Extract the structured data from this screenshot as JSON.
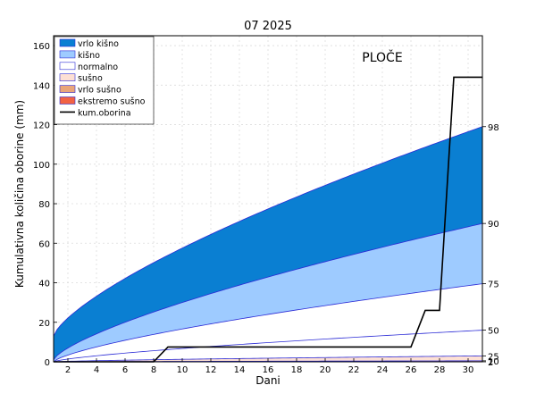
{
  "chart_data": {
    "type": "area",
    "title": "07 2025",
    "station": "PLOČE",
    "xlabel": "Dani",
    "ylabel": "Kumulativna količina oborine (mm)",
    "xlim": [
      1,
      31
    ],
    "ylim": [
      0,
      165
    ],
    "x_ticks": [
      2,
      4,
      6,
      8,
      10,
      12,
      14,
      16,
      18,
      20,
      22,
      24,
      26,
      28,
      30
    ],
    "y_ticks": [
      0,
      20,
      40,
      60,
      80,
      100,
      120,
      140,
      160
    ],
    "grid": true,
    "legend_position": "top-left",
    "bands": [
      {
        "name": "vrlo kišno",
        "color": "#0a7fd2",
        "lower_percentile": 90,
        "upper_percentile": 98
      },
      {
        "name": "kišno",
        "color": "#9ecbff",
        "lower_percentile": 75,
        "upper_percentile": 90
      },
      {
        "name": "normalno",
        "color": "#ffffff",
        "lower_percentile": 25,
        "upper_percentile": 75
      },
      {
        "name": "sušno",
        "color": "#fde0d4",
        "lower_percentile": 10,
        "upper_percentile": 25
      },
      {
        "name": "vrlo sušno",
        "color": "#e9a57a",
        "lower_percentile": 2,
        "upper_percentile": 10
      },
      {
        "name": "ekstremo sušno",
        "color": "#f26243",
        "lower_percentile": 0,
        "upper_percentile": 2
      }
    ],
    "percentile_curves": [
      {
        "label": "98",
        "start": 13,
        "end": 119
      },
      {
        "label": "90",
        "start": 1,
        "end": 70
      },
      {
        "label": "75",
        "start": 0,
        "end": 39.5
      },
      {
        "label": "50",
        "start": 0,
        "end": 16
      },
      {
        "label": "25",
        "start": 0,
        "end": 3
      },
      {
        "label": "10",
        "start": 0,
        "end": 0.5
      },
      {
        "label": "2",
        "start": 0,
        "end": 0
      }
    ],
    "cumulative": {
      "name": "kum.oborina",
      "color": "#000000",
      "points": [
        [
          1,
          0
        ],
        [
          8,
          0
        ],
        [
          9,
          7.5
        ],
        [
          25,
          7.5
        ],
        [
          26,
          7.5
        ],
        [
          27,
          26
        ],
        [
          28,
          26
        ],
        [
          29,
          144
        ],
        [
          31,
          144
        ]
      ]
    }
  }
}
